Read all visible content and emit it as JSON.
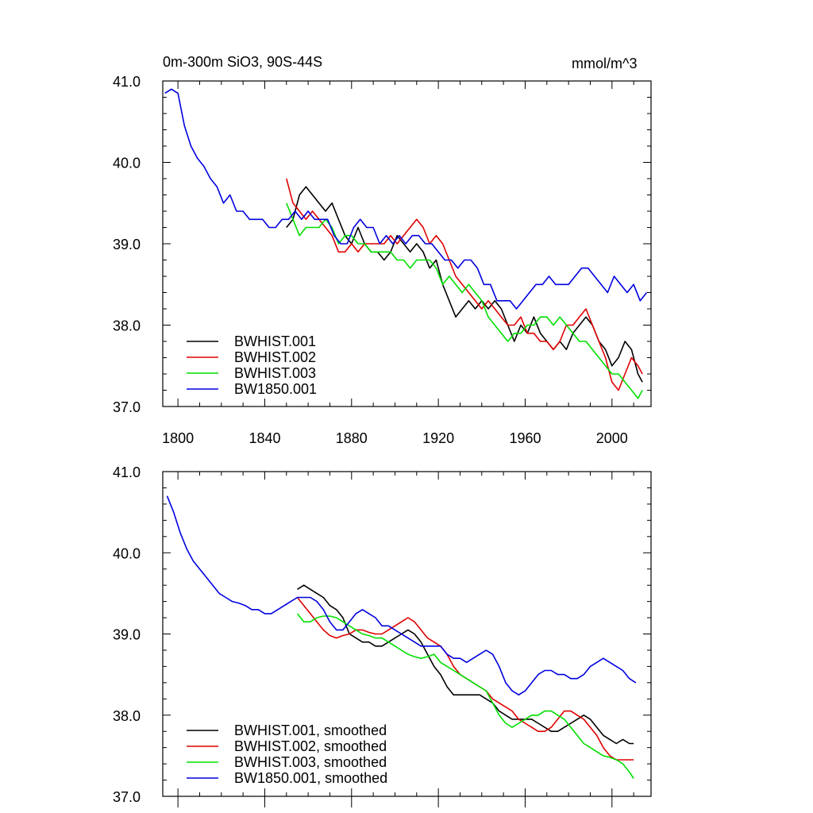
{
  "title_left": "0m-300m SiO3, 90S-44S",
  "title_right": "mmol/m^3",
  "colors": {
    "BWHIST.001": "#000000",
    "BWHIST.002": "#e00000",
    "BWHIST.003": "#00e000",
    "BW1850.001": "#0000e0"
  },
  "chart_data": [
    {
      "type": "line",
      "panel": "top",
      "xlim": [
        1793,
        2018
      ],
      "ylim": [
        37.0,
        41.0
      ],
      "xticks": [
        1800,
        1840,
        1880,
        1920,
        1960,
        2000
      ],
      "xtick_labels": [
        "1800",
        "1840",
        "1880",
        "1920",
        "1960",
        "2000"
      ],
      "yticks": [
        37.0,
        38.0,
        39.0,
        40.0,
        41.0
      ],
      "ytick_labels": [
        "37.0",
        "38.0",
        "39.0",
        "40.0",
        "41.0"
      ],
      "legend_position": "bottom-left",
      "series": [
        {
          "name": "BWHIST.001",
          "x": [
            1850,
            1853,
            1856,
            1859,
            1862,
            1865,
            1868,
            1871,
            1874,
            1877,
            1880,
            1883,
            1886,
            1889,
            1892,
            1895,
            1898,
            1901,
            1904,
            1907,
            1910,
            1913,
            1916,
            1919,
            1922,
            1925,
            1928,
            1931,
            1934,
            1937,
            1940,
            1943,
            1946,
            1949,
            1952,
            1955,
            1958,
            1961,
            1964,
            1967,
            1970,
            1973,
            1976,
            1979,
            1982,
            1985,
            1988,
            1991,
            1994,
            1997,
            2000,
            2003,
            2006,
            2009,
            2012,
            2014
          ],
          "y": [
            39.2,
            39.3,
            39.6,
            39.7,
            39.6,
            39.5,
            39.4,
            39.5,
            39.3,
            39.1,
            39.0,
            39.2,
            39.0,
            38.9,
            38.9,
            38.8,
            38.9,
            39.1,
            39.0,
            38.9,
            39.0,
            38.9,
            38.7,
            38.8,
            38.5,
            38.3,
            38.1,
            38.2,
            38.3,
            38.2,
            38.3,
            38.2,
            38.3,
            38.2,
            38.0,
            37.8,
            38.0,
            37.9,
            38.1,
            37.9,
            37.8,
            37.7,
            37.8,
            37.7,
            37.9,
            38.0,
            38.1,
            38.0,
            37.8,
            37.7,
            37.5,
            37.6,
            37.8,
            37.7,
            37.4,
            37.3
          ]
        },
        {
          "name": "BWHIST.002",
          "x": [
            1850,
            1853,
            1856,
            1859,
            1862,
            1865,
            1868,
            1871,
            1874,
            1877,
            1880,
            1883,
            1886,
            1889,
            1892,
            1895,
            1898,
            1901,
            1904,
            1907,
            1910,
            1913,
            1916,
            1919,
            1922,
            1925,
            1928,
            1931,
            1934,
            1937,
            1940,
            1943,
            1946,
            1949,
            1952,
            1955,
            1958,
            1961,
            1964,
            1967,
            1970,
            1973,
            1976,
            1979,
            1982,
            1985,
            1988,
            1991,
            1994,
            1997,
            2000,
            2003,
            2006,
            2009,
            2012,
            2014
          ],
          "y": [
            39.8,
            39.5,
            39.4,
            39.3,
            39.4,
            39.3,
            39.2,
            39.1,
            38.9,
            38.9,
            39.0,
            38.9,
            39.0,
            39.0,
            39.0,
            39.0,
            39.1,
            39.0,
            39.1,
            39.2,
            39.3,
            39.2,
            39.0,
            39.1,
            39.0,
            38.8,
            38.6,
            38.5,
            38.4,
            38.3,
            38.2,
            38.3,
            38.2,
            38.1,
            38.0,
            38.0,
            38.1,
            37.9,
            37.9,
            37.8,
            37.8,
            37.7,
            37.8,
            38.0,
            38.0,
            38.1,
            38.2,
            38.0,
            37.8,
            37.6,
            37.3,
            37.2,
            37.4,
            37.6,
            37.5,
            37.4
          ]
        },
        {
          "name": "BWHIST.003",
          "x": [
            1850,
            1853,
            1856,
            1859,
            1862,
            1865,
            1868,
            1871,
            1874,
            1877,
            1880,
            1883,
            1886,
            1889,
            1892,
            1895,
            1898,
            1901,
            1904,
            1907,
            1910,
            1913,
            1916,
            1919,
            1922,
            1925,
            1928,
            1931,
            1934,
            1937,
            1940,
            1943,
            1946,
            1949,
            1952,
            1955,
            1958,
            1961,
            1964,
            1967,
            1970,
            1973,
            1976,
            1979,
            1982,
            1985,
            1988,
            1991,
            1994,
            1997,
            2000,
            2003,
            2006,
            2009,
            2012,
            2014
          ],
          "y": [
            39.5,
            39.3,
            39.1,
            39.2,
            39.2,
            39.2,
            39.3,
            39.2,
            39.0,
            39.1,
            39.1,
            39.0,
            39.0,
            38.9,
            38.9,
            38.9,
            38.9,
            38.8,
            38.8,
            38.7,
            38.8,
            38.8,
            38.8,
            38.7,
            38.5,
            38.6,
            38.5,
            38.4,
            38.5,
            38.4,
            38.3,
            38.1,
            38.0,
            37.9,
            37.8,
            37.9,
            37.9,
            38.0,
            38.0,
            38.1,
            38.1,
            38.0,
            38.1,
            38.0,
            37.9,
            37.8,
            37.8,
            37.7,
            37.6,
            37.5,
            37.4,
            37.4,
            37.3,
            37.2,
            37.1,
            37.2
          ]
        },
        {
          "name": "BW1850.001",
          "x": [
            1794,
            1797,
            1800,
            1803,
            1806,
            1809,
            1812,
            1815,
            1818,
            1821,
            1824,
            1827,
            1830,
            1833,
            1836,
            1839,
            1842,
            1845,
            1848,
            1851,
            1854,
            1857,
            1860,
            1863,
            1866,
            1869,
            1872,
            1875,
            1878,
            1881,
            1884,
            1887,
            1890,
            1893,
            1896,
            1899,
            1902,
            1905,
            1908,
            1911,
            1914,
            1917,
            1920,
            1923,
            1926,
            1929,
            1932,
            1935,
            1938,
            1941,
            1944,
            1947,
            1950,
            1953,
            1956,
            1959,
            1962,
            1965,
            1968,
            1971,
            1974,
            1977,
            1980,
            1983,
            1986,
            1989,
            1992,
            1995,
            1998,
            2001,
            2004,
            2007,
            2010,
            2013,
            2016
          ],
          "y": [
            40.85,
            40.9,
            40.85,
            40.45,
            40.2,
            40.05,
            39.95,
            39.8,
            39.7,
            39.5,
            39.6,
            39.4,
            39.4,
            39.3,
            39.3,
            39.3,
            39.2,
            39.2,
            39.3,
            39.3,
            39.4,
            39.3,
            39.4,
            39.3,
            39.3,
            39.3,
            39.1,
            39.0,
            39.0,
            39.2,
            39.3,
            39.2,
            39.2,
            39.0,
            39.1,
            39.0,
            39.1,
            39.0,
            39.1,
            39.1,
            39.0,
            39.0,
            38.9,
            38.8,
            38.8,
            38.7,
            38.8,
            38.8,
            38.7,
            38.5,
            38.5,
            38.3,
            38.3,
            38.3,
            38.2,
            38.3,
            38.4,
            38.5,
            38.5,
            38.6,
            38.5,
            38.5,
            38.5,
            38.6,
            38.7,
            38.7,
            38.6,
            38.5,
            38.4,
            38.6,
            38.5,
            38.4,
            38.5,
            38.3,
            38.4
          ]
        }
      ]
    },
    {
      "type": "line",
      "panel": "bottom",
      "xlim": [
        1793,
        2018
      ],
      "ylim": [
        37.0,
        41.0
      ],
      "xticks": [
        1800,
        1840,
        1880,
        1920,
        1960,
        2000
      ],
      "yticks": [
        37.0,
        38.0,
        39.0,
        40.0,
        41.0
      ],
      "ytick_labels": [
        "37.0",
        "38.0",
        "39.0",
        "40.0",
        "41.0"
      ],
      "legend_position": "bottom-left",
      "series": [
        {
          "name": "BWHIST.001, smoothed",
          "x": [
            1855,
            1858,
            1861,
            1864,
            1867,
            1870,
            1873,
            1876,
            1879,
            1882,
            1885,
            1888,
            1891,
            1894,
            1897,
            1900,
            1903,
            1906,
            1909,
            1912,
            1915,
            1918,
            1921,
            1924,
            1927,
            1930,
            1933,
            1936,
            1939,
            1942,
            1945,
            1948,
            1951,
            1954,
            1957,
            1960,
            1963,
            1966,
            1969,
            1972,
            1975,
            1978,
            1981,
            1984,
            1987,
            1990,
            1993,
            1996,
            1999,
            2002,
            2005,
            2008,
            2010
          ],
          "y": [
            39.55,
            39.6,
            39.55,
            39.5,
            39.45,
            39.35,
            39.3,
            39.2,
            39.0,
            38.95,
            38.9,
            38.9,
            38.85,
            38.85,
            38.9,
            38.95,
            39.0,
            39.05,
            39.0,
            38.9,
            38.75,
            38.6,
            38.5,
            38.35,
            38.25,
            38.25,
            38.25,
            38.25,
            38.25,
            38.2,
            38.15,
            38.05,
            38.0,
            37.95,
            37.95,
            37.95,
            37.95,
            37.9,
            37.85,
            37.8,
            37.8,
            37.85,
            37.9,
            37.95,
            38.0,
            37.95,
            37.85,
            37.75,
            37.7,
            37.65,
            37.7,
            37.65,
            37.65
          ]
        },
        {
          "name": "BWHIST.002, smoothed",
          "x": [
            1855,
            1858,
            1861,
            1864,
            1867,
            1870,
            1873,
            1876,
            1879,
            1882,
            1885,
            1888,
            1891,
            1894,
            1897,
            1900,
            1903,
            1906,
            1909,
            1912,
            1915,
            1918,
            1921,
            1924,
            1927,
            1930,
            1933,
            1936,
            1939,
            1942,
            1945,
            1948,
            1951,
            1954,
            1957,
            1960,
            1963,
            1966,
            1969,
            1972,
            1975,
            1978,
            1981,
            1984,
            1987,
            1990,
            1993,
            1996,
            1999,
            2002,
            2005,
            2008,
            2010
          ],
          "y": [
            39.45,
            39.35,
            39.25,
            39.15,
            39.05,
            38.98,
            38.95,
            38.98,
            39.0,
            39.05,
            39.05,
            39.02,
            39.0,
            39.0,
            39.05,
            39.1,
            39.15,
            39.2,
            39.15,
            39.05,
            38.95,
            38.9,
            38.85,
            38.75,
            38.6,
            38.5,
            38.45,
            38.4,
            38.35,
            38.3,
            38.2,
            38.15,
            38.1,
            38.05,
            37.95,
            37.9,
            37.85,
            37.8,
            37.8,
            37.85,
            37.95,
            38.05,
            38.05,
            38.0,
            37.95,
            37.85,
            37.75,
            37.6,
            37.5,
            37.45,
            37.45,
            37.45,
            37.45
          ]
        },
        {
          "name": "BWHIST.003, smoothed",
          "x": [
            1855,
            1858,
            1861,
            1864,
            1867,
            1870,
            1873,
            1876,
            1879,
            1882,
            1885,
            1888,
            1891,
            1894,
            1897,
            1900,
            1903,
            1906,
            1909,
            1912,
            1915,
            1918,
            1921,
            1924,
            1927,
            1930,
            1933,
            1936,
            1939,
            1942,
            1945,
            1948,
            1951,
            1954,
            1957,
            1960,
            1963,
            1966,
            1969,
            1972,
            1975,
            1978,
            1981,
            1984,
            1987,
            1990,
            1993,
            1996,
            1999,
            2002,
            2005,
            2008,
            2010
          ],
          "y": [
            39.25,
            39.15,
            39.15,
            39.2,
            39.22,
            39.22,
            39.2,
            39.15,
            39.1,
            39.05,
            39.0,
            38.98,
            38.95,
            38.95,
            38.9,
            38.85,
            38.8,
            38.75,
            38.72,
            38.7,
            38.72,
            38.75,
            38.65,
            38.6,
            38.55,
            38.5,
            38.45,
            38.4,
            38.35,
            38.3,
            38.15,
            38.0,
            37.9,
            37.85,
            37.9,
            37.95,
            38.0,
            38.0,
            38.05,
            38.05,
            38.0,
            37.95,
            37.85,
            37.75,
            37.65,
            37.6,
            37.55,
            37.5,
            37.48,
            37.45,
            37.4,
            37.3,
            37.22
          ]
        },
        {
          "name": "BW1850.001, smoothed",
          "x": [
            1795,
            1798,
            1801,
            1804,
            1807,
            1810,
            1813,
            1816,
            1819,
            1822,
            1825,
            1828,
            1831,
            1834,
            1837,
            1840,
            1843,
            1846,
            1849,
            1852,
            1855,
            1858,
            1861,
            1864,
            1867,
            1870,
            1873,
            1876,
            1879,
            1882,
            1885,
            1888,
            1891,
            1894,
            1897,
            1900,
            1903,
            1906,
            1909,
            1912,
            1915,
            1918,
            1921,
            1924,
            1927,
            1930,
            1933,
            1936,
            1939,
            1942,
            1945,
            1948,
            1951,
            1954,
            1957,
            1960,
            1963,
            1966,
            1969,
            1972,
            1975,
            1978,
            1981,
            1984,
            1987,
            1990,
            1993,
            1996,
            1999,
            2002,
            2005,
            2008,
            2011
          ],
          "y": [
            40.7,
            40.5,
            40.25,
            40.05,
            39.9,
            39.8,
            39.7,
            39.6,
            39.5,
            39.45,
            39.4,
            39.38,
            39.35,
            39.3,
            39.3,
            39.25,
            39.25,
            39.3,
            39.35,
            39.4,
            39.45,
            39.45,
            39.45,
            39.4,
            39.3,
            39.15,
            39.05,
            39.05,
            39.15,
            39.25,
            39.3,
            39.25,
            39.2,
            39.1,
            39.1,
            39.05,
            39.0,
            38.95,
            38.9,
            38.85,
            38.85,
            38.85,
            38.85,
            38.75,
            38.7,
            38.7,
            38.65,
            38.7,
            38.75,
            38.8,
            38.75,
            38.6,
            38.4,
            38.3,
            38.25,
            38.3,
            38.4,
            38.5,
            38.55,
            38.55,
            38.5,
            38.5,
            38.45,
            38.45,
            38.5,
            38.6,
            38.65,
            38.7,
            38.65,
            38.6,
            38.55,
            38.45,
            38.4
          ]
        }
      ]
    }
  ]
}
